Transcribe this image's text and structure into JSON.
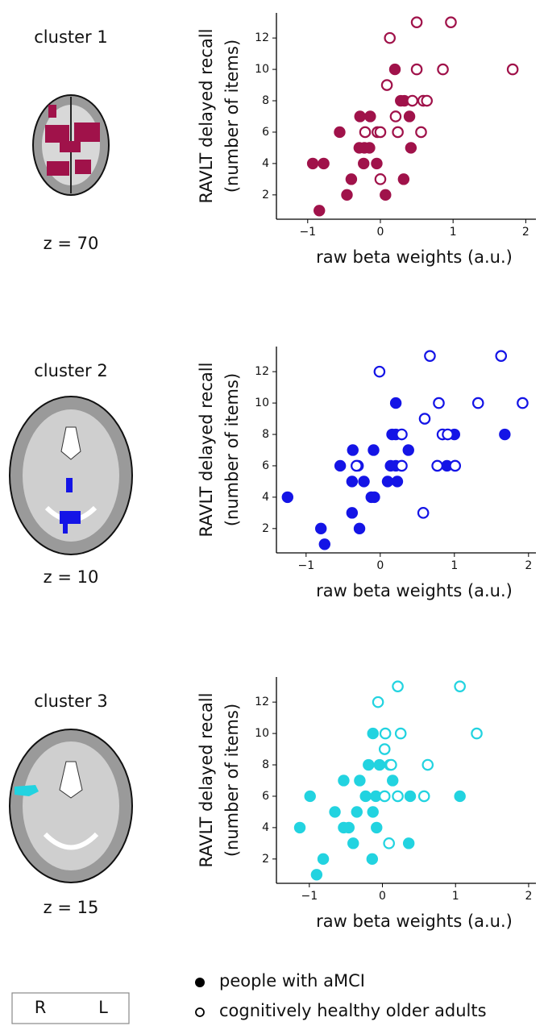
{
  "chart_data": [
    {
      "type": "scatter",
      "cluster": "cluster 1",
      "slice": "z = 70",
      "xlabel": "raw beta weights (a.u.)",
      "ylabel": [
        "RAVLT delayed recall",
        "(number of items)"
      ],
      "xlim": [
        -1.43,
        2.14
      ],
      "ylim": [
        0.45,
        13.6
      ],
      "xticks": [
        {
          "value": -1,
          "label": "−1"
        },
        0,
        1,
        2
      ],
      "yticks": [
        2,
        4,
        6,
        8,
        10,
        12
      ],
      "series": [
        {
          "marker": "filled",
          "color": "#a0124a",
          "x": [
            0.2,
            -0.56,
            -0.93,
            -0.78,
            -0.28,
            -0.14,
            0.28,
            0.33,
            0.4,
            -0.29,
            -0.22,
            -0.15,
            0.42,
            -0.05,
            -0.23,
            -0.4,
            -0.46,
            0.07,
            0.32,
            -0.84
          ],
          "values": [
            10,
            6,
            4,
            4,
            7,
            7,
            8,
            8,
            7,
            5,
            5,
            5,
            5,
            4,
            4,
            3,
            2,
            2,
            3,
            1
          ]
        },
        {
          "marker": "open",
          "color": "#a0124a",
          "x": [
            0.5,
            0.97,
            0.13,
            0.5,
            0.86,
            1.82,
            0.09,
            0.44,
            0.59,
            0.64,
            -0.21,
            -0.04,
            0.0,
            0.24,
            0.56,
            0.21,
            0.0
          ],
          "values": [
            13,
            13,
            12,
            10,
            10,
            10,
            9,
            8,
            8,
            8,
            6,
            6,
            6,
            6,
            6,
            7,
            3
          ]
        }
      ]
    },
    {
      "type": "scatter",
      "cluster": "cluster 2",
      "slice": "z = 10",
      "xlabel": "raw beta weights (a.u.)",
      "ylabel": [
        "RAVLT delayed recall",
        "(number of items)"
      ],
      "xlim": [
        -1.4,
        2.1
      ],
      "ylim": [
        0.45,
        13.6
      ],
      "xticks": [
        {
          "value": -1,
          "label": "−1"
        },
        0,
        1,
        2
      ],
      "yticks": [
        2,
        4,
        6,
        8,
        10,
        12
      ],
      "series": [
        {
          "marker": "filled",
          "color": "#1414e6",
          "x": [
            -1.25,
            -0.8,
            -0.75,
            -0.38,
            -0.28,
            -0.37,
            -0.09,
            -0.54,
            -0.3,
            -0.38,
            -0.22,
            -0.12,
            -0.08,
            0.21,
            0.16,
            0.21,
            0.38,
            0.14,
            0.21,
            0.1,
            0.23,
            0.9,
            1.0,
            1.68
          ],
          "values": [
            4,
            2,
            1,
            3,
            2,
            7,
            7,
            6,
            6,
            5,
            5,
            4,
            4,
            10,
            8,
            8,
            7,
            6,
            6,
            5,
            5,
            6,
            8,
            8
          ]
        },
        {
          "marker": "open",
          "color": "#1414e6",
          "x": [
            0.67,
            1.63,
            -0.01,
            0.79,
            1.32,
            1.92,
            0.6,
            0.29,
            0.84,
            0.91,
            -0.32,
            0.29,
            0.77,
            1.01,
            0.58
          ],
          "values": [
            13,
            13,
            12,
            10,
            10,
            10,
            9,
            8,
            8,
            8,
            6,
            6,
            6,
            6,
            3
          ]
        }
      ]
    },
    {
      "type": "scatter",
      "cluster": "cluster 3",
      "slice": "z = 15",
      "xlabel": "raw beta weights (a.u.)",
      "ylabel": [
        "RAVLT delayed recall",
        "(number of items)"
      ],
      "xlim": [
        -1.45,
        2.1
      ],
      "ylim": [
        0.45,
        13.6
      ],
      "xticks": [
        {
          "value": -1,
          "label": "−1"
        },
        0,
        1,
        2
      ],
      "yticks": [
        2,
        4,
        6,
        8,
        10,
        12
      ],
      "series": [
        {
          "marker": "filled",
          "color": "#22d3e0",
          "x": [
            -0.9,
            -0.81,
            -1.13,
            -0.4,
            -0.53,
            -0.46,
            -0.08,
            -0.65,
            -0.35,
            -0.13,
            -0.14,
            0.36,
            -0.99,
            -0.23,
            -0.09,
            0.38,
            1.06,
            -0.53,
            -0.31,
            0.14,
            -0.19,
            -0.04,
            0.1,
            -0.13
          ],
          "values": [
            1,
            2,
            4,
            3,
            4,
            4,
            4,
            5,
            5,
            5,
            2,
            3,
            6,
            6,
            6,
            6,
            6,
            7,
            7,
            7,
            8,
            8,
            8,
            10
          ]
        },
        {
          "marker": "open",
          "color": "#22d3e0",
          "x": [
            0.21,
            1.06,
            -0.06,
            0.04,
            0.25,
            1.29,
            0.03,
            0.12,
            0.62,
            0.03,
            0.21,
            0.57,
            0.09
          ],
          "values": [
            13,
            13,
            12,
            10,
            10,
            10,
            9,
            8,
            8,
            6,
            6,
            6,
            3
          ]
        }
      ]
    }
  ],
  "legend": [
    {
      "marker": "filled",
      "label": "people with aMCI"
    },
    {
      "marker": "open",
      "label": "cognitively healthy older adults"
    }
  ],
  "orientation": [
    "R",
    "L"
  ]
}
